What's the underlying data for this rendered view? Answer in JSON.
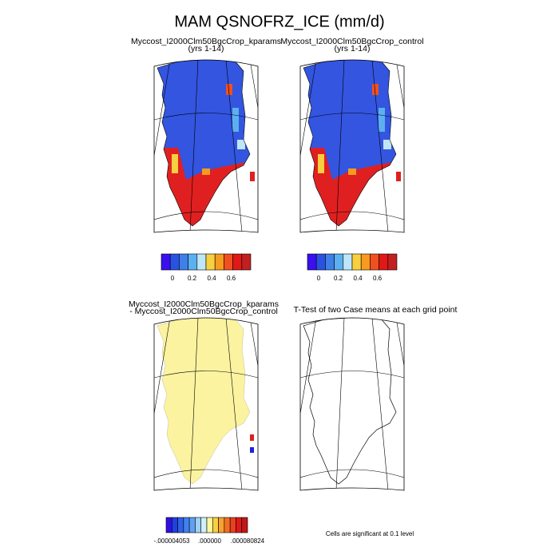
{
  "title": "MAM QSNOFRZ_ICE (mm/d)",
  "panels": [
    {
      "title": "Myccost_I2000Clm50BgcCrop_kparams",
      "subtitle": "(yrs 1-14)"
    },
    {
      "title": "Myccost_I2000Clm50BgcCrop_control",
      "subtitle": "(yrs 1-14)"
    },
    {
      "title": "Myccost_I2000Clm50BgcCrop_kparams",
      "subtitle": "- Myccost_I2000Clm50BgcCrop_control"
    },
    {
      "title": "T-Test of two Case means at each grid point"
    }
  ],
  "colorbars": [
    {
      "colors": [
        "#3a10ee",
        "#2a52e2",
        "#3f7fe8",
        "#5cb0f0",
        "#bfe6f7",
        "#f7d040",
        "#f79a20",
        "#f05020",
        "#e01818",
        "#c02020"
      ],
      "labels": [
        "0",
        "0.2",
        "0.4",
        "0.6"
      ]
    },
    {
      "colors": [
        "#3a10ee",
        "#2a52e2",
        "#3f7fe8",
        "#5cb0f0",
        "#bfe6f7",
        "#f7d040",
        "#f79a20",
        "#f05020",
        "#e01818",
        "#c02020"
      ],
      "labels": [
        "0",
        "0.2",
        "0.4",
        "0.6"
      ]
    },
    {
      "colors": [
        "#3010e0",
        "#2040e0",
        "#3060e8",
        "#4080f0",
        "#60a0f0",
        "#a0d0f8",
        "#d0f0f8",
        "#fff6a0",
        "#f8d040",
        "#f8a030",
        "#f07020",
        "#e84020",
        "#e01818",
        "#c01818"
      ],
      "labels": [
        "-.000004053",
        ".000000",
        ".000080824"
      ]
    }
  ],
  "note": "Cells are significant at 0.1 level"
}
